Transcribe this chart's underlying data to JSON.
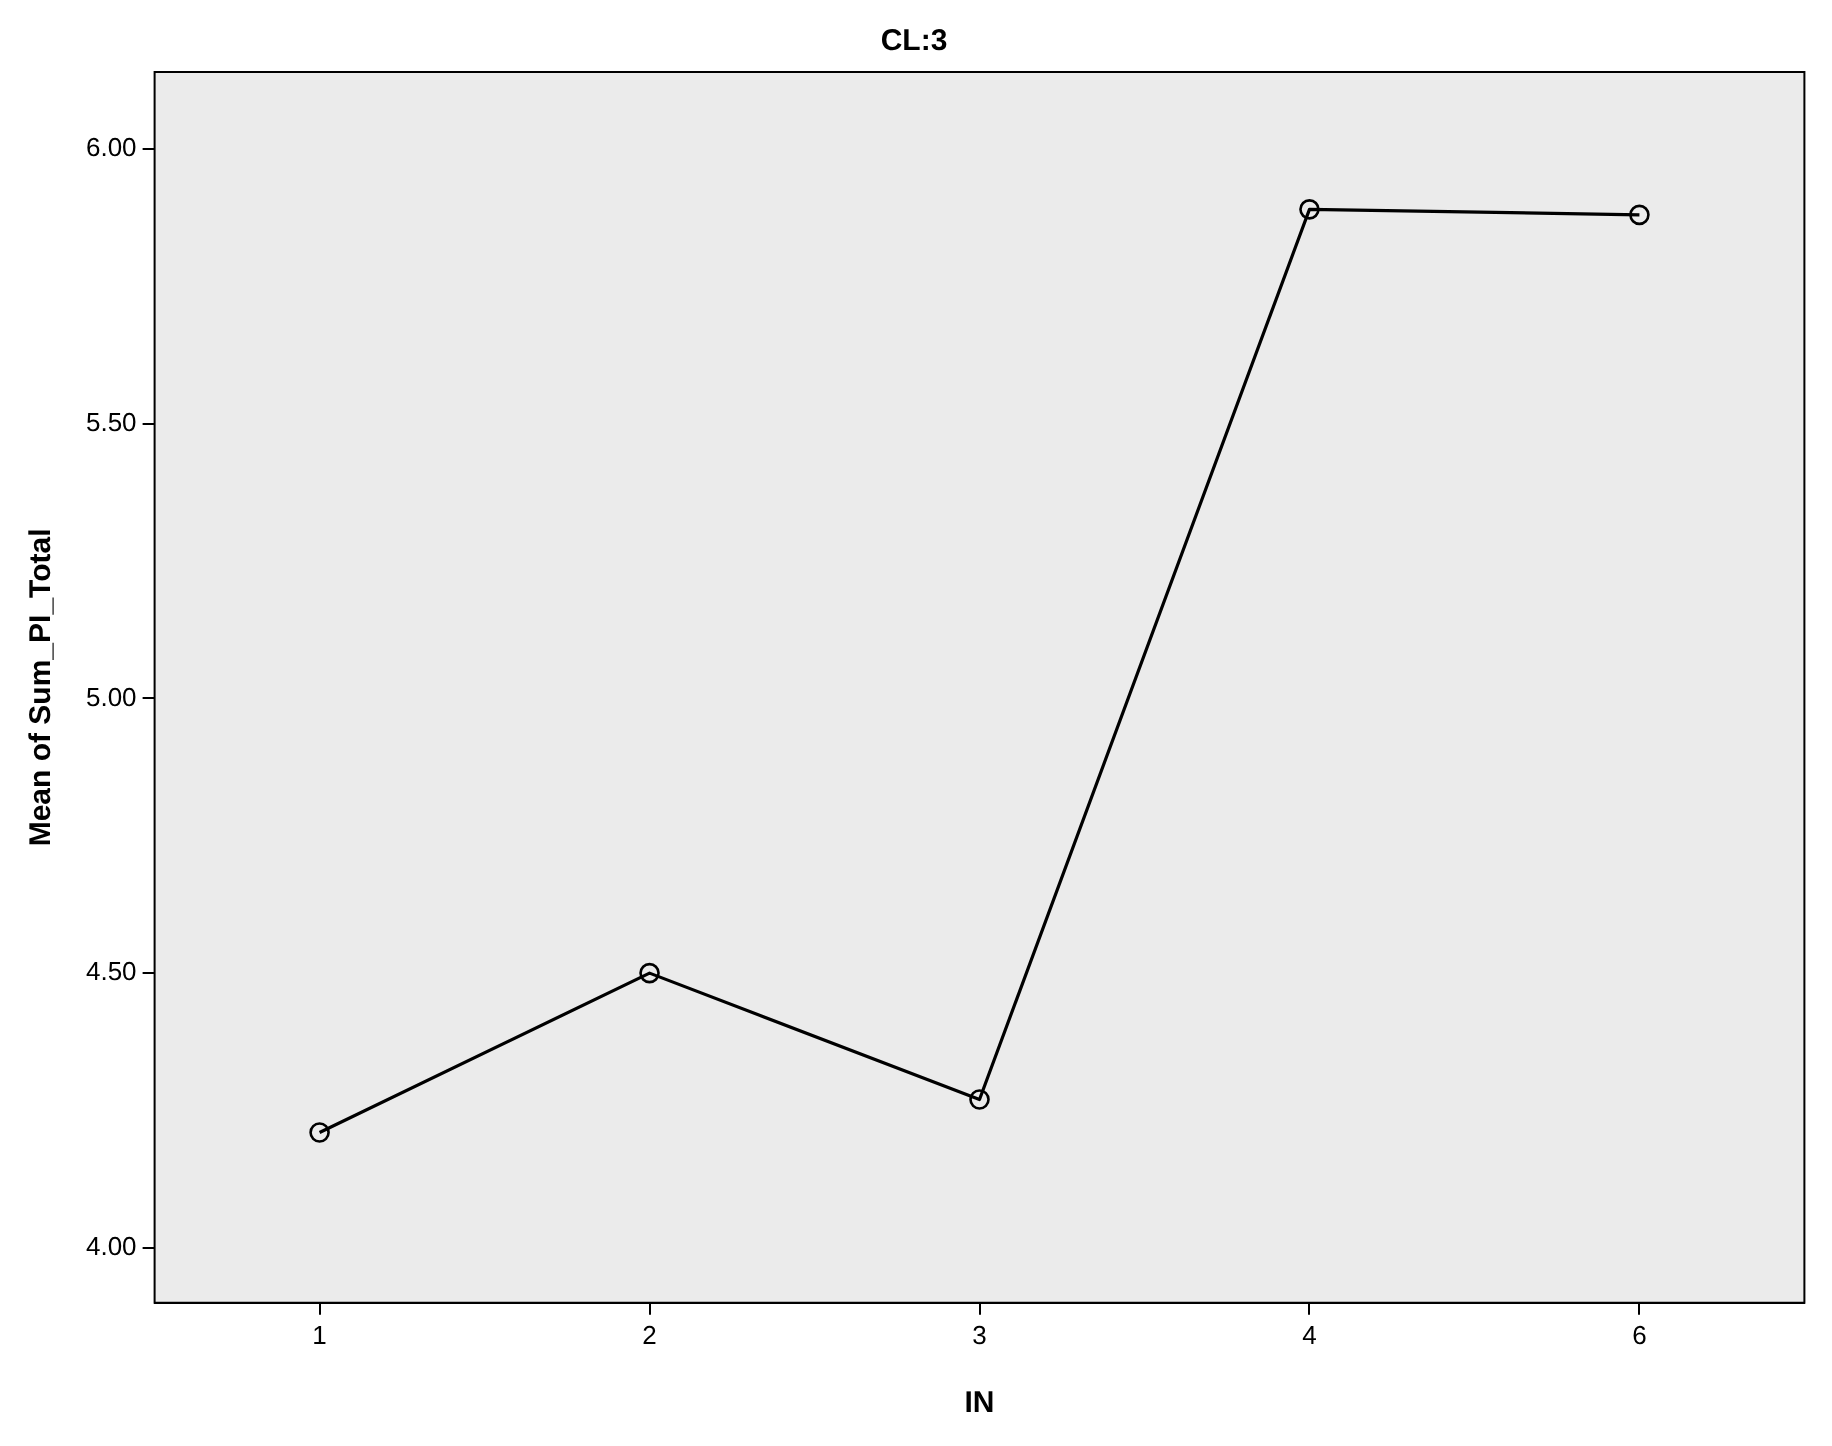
{
  "chart_data": {
    "type": "line",
    "title": "CL:3",
    "xlabel": "IN",
    "ylabel": "Mean of Sum_PI_Total",
    "categories": [
      "1",
      "2",
      "3",
      "4",
      "6"
    ],
    "series": [
      {
        "color": "#000000",
        "values": [
          4.21,
          4.5,
          4.27,
          5.89,
          5.88
        ]
      }
    ],
    "ylim": [
      3.9,
      6.14
    ],
    "yticks": [
      {
        "value": 4,
        "label": "4.00"
      },
      {
        "value": 4.5,
        "label": "4.50"
      },
      {
        "value": 5,
        "label": "5.00"
      },
      {
        "value": 5.5,
        "label": "5.50"
      },
      {
        "value": 6,
        "label": "6.00"
      }
    ],
    "legend": false,
    "marker": "circle",
    "line_style": "solid"
  }
}
